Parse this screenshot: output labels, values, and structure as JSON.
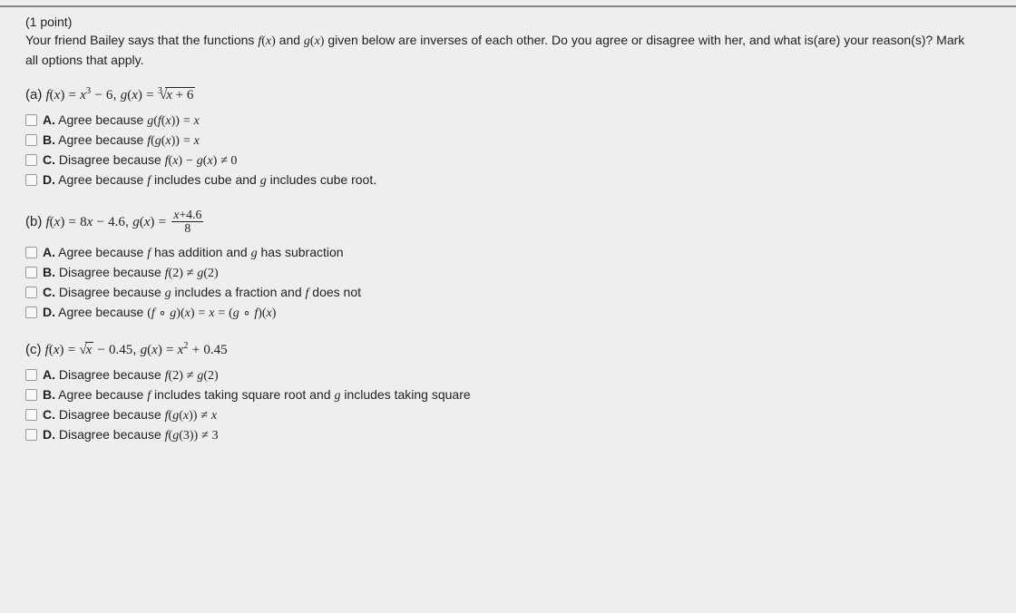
{
  "header": {
    "points": "(1 point)",
    "prompt_html": "Your friend Bailey says that the functions <span class='math'>f</span><span class='mathrm'>(</span><span class='math'>x</span><span class='mathrm'>)</span> and <span class='math'>g</span><span class='mathrm'>(</span><span class='math'>x</span><span class='mathrm'>)</span> given below are inverses of each other. Do you agree or disagree with her, and what is(are) your reason(s)? Mark all options that apply."
  },
  "parts": [
    {
      "label_html": "(a) <span class='math'>f</span><span class='mathrm'>(</span><span class='math'>x</span><span class='mathrm'>)</span> <span class='eq'>=</span> <span class='math'>x</span><span class='sup mathrm'>3</span> <span class='eq'>−</span> <span class='mathrm'>6</span>, <span class='math'>g</span><span class='mathrm'>(</span><span class='math'>x</span><span class='mathrm'>)</span> <span class='eq'>=</span> <span class='radix'><span class='deg'>3</span>√<span class='radicand'>x <span class='mathrm'>+ 6</span></span></span>",
      "options": [
        {
          "letter": "A.",
          "html": "Agree because <span class='math'>g</span><span class='mathrm'>(</span><span class='math'>f</span><span class='mathrm'>(</span><span class='math'>x</span><span class='mathrm'>))</span> <span class='eq'>=</span> <span class='math'>x</span>"
        },
        {
          "letter": "B.",
          "html": "Agree because <span class='math'>f</span><span class='mathrm'>(</span><span class='math'>g</span><span class='mathrm'>(</span><span class='math'>x</span><span class='mathrm'>))</span> <span class='eq'>=</span> <span class='math'>x</span>"
        },
        {
          "letter": "C.",
          "html": "Disagree because <span class='math'>f</span><span class='mathrm'>(</span><span class='math'>x</span><span class='mathrm'>)</span> <span class='eq'>−</span> <span class='math'>g</span><span class='mathrm'>(</span><span class='math'>x</span><span class='mathrm'>)</span> <span class='eq'>≠ 0</span>"
        },
        {
          "letter": "D.",
          "html": "Agree because <span class='math'>f</span> includes cube and <span class='math'>g</span> includes cube root."
        }
      ]
    },
    {
      "label_html": "(b) <span class='math'>f</span><span class='mathrm'>(</span><span class='math'>x</span><span class='mathrm'>)</span> <span class='eq'>=</span> <span class='mathrm'>8</span><span class='math'>x</span> <span class='eq'>−</span> <span class='mathrm'>4.6</span>, <span class='math'>g</span><span class='mathrm'>(</span><span class='math'>x</span><span class='mathrm'>)</span> <span class='eq'>=</span> <span class='frac'><span class='num'><span class='math'>x</span><span class='mathrm'>+4.6</span></span><span class='den mathrm'>8</span></span>",
      "options": [
        {
          "letter": "A.",
          "html": "Agree because <span class='math'>f</span> has addition and <span class='math'>g</span> has subraction"
        },
        {
          "letter": "B.",
          "html": "Disagree because <span class='math'>f</span><span class='mathrm'>(2)</span> <span class='eq'>≠</span> <span class='math'>g</span><span class='mathrm'>(2)</span>"
        },
        {
          "letter": "C.",
          "html": "Disagree because <span class='math'>g</span> includes a fraction and <span class='math'>f</span> does not"
        },
        {
          "letter": "D.",
          "html": "Agree because <span class='mathrm'>(</span><span class='math'>f</span> <span class='eq'>∘</span> <span class='math'>g</span><span class='mathrm'>)(</span><span class='math'>x</span><span class='mathrm'>)</span> <span class='eq'>=</span> <span class='math'>x</span> <span class='eq'>=</span> <span class='mathrm'>(</span><span class='math'>g</span> <span class='eq'>∘</span> <span class='math'>f</span><span class='mathrm'>)(</span><span class='math'>x</span><span class='mathrm'>)</span>"
        }
      ]
    },
    {
      "label_html": "(c) <span class='math'>f</span><span class='mathrm'>(</span><span class='math'>x</span><span class='mathrm'>)</span> <span class='eq'>=</span> <span class='radix'>√<span class='radicand'>x</span></span> <span class='eq'>−</span> <span class='mathrm'>0.45</span>, <span class='math'>g</span><span class='mathrm'>(</span><span class='math'>x</span><span class='mathrm'>)</span> <span class='eq'>=</span> <span class='math'>x</span><span class='sup mathrm'>2</span> <span class='eq'>+</span> <span class='mathrm'>0.45</span>",
      "options": [
        {
          "letter": "A.",
          "html": "Disagree because <span class='math'>f</span><span class='mathrm'>(2)</span> <span class='eq'>≠</span> <span class='math'>g</span><span class='mathrm'>(2)</span>"
        },
        {
          "letter": "B.",
          "html": "Agree because <span class='math'>f</span> includes taking square root and <span class='math'>g</span> includes taking square"
        },
        {
          "letter": "C.",
          "html": "Disagree because <span class='math'>f</span><span class='mathrm'>(</span><span class='math'>g</span><span class='mathrm'>(</span><span class='math'>x</span><span class='mathrm'>))</span> <span class='eq'>≠</span> <span class='math'>x</span>"
        },
        {
          "letter": "D.",
          "html": "Disagree because <span class='math'>f</span><span class='mathrm'>(</span><span class='math'>g</span><span class='mathrm'>(3))</span> <span class='eq'>≠</span> <span class='mathrm'>3</span>"
        }
      ]
    }
  ]
}
